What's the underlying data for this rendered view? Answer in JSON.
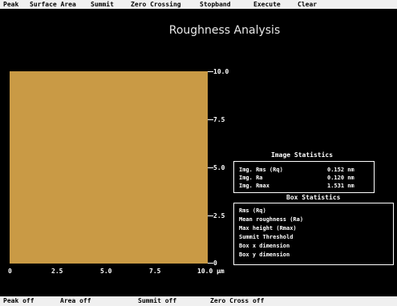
{
  "menu": {
    "peak": "Peak",
    "surface_area": "Surface Area",
    "summit": "Summit",
    "zero_crossing": "Zero Crossing",
    "stopband": "Stopband",
    "execute": "Execute",
    "clear": "Clear"
  },
  "title": "Roughness Analysis",
  "y_axis": {
    "ticks": [
      "10.0",
      "7.5",
      "5.0",
      "2.5",
      "0"
    ]
  },
  "x_axis": {
    "ticks": [
      "0",
      "2.5",
      "5.0",
      "7.5",
      "10.0"
    ],
    "unit": "µm"
  },
  "image_color": "#c99a45",
  "image_stats": {
    "title": "Image Statistics",
    "rows": [
      {
        "label": "Img. Rms (Rq)",
        "value": "0.152 nm"
      },
      {
        "label": "Img. Ra",
        "value": "0.120 nm"
      },
      {
        "label": "Img. Rmax",
        "value": "1.531 nm"
      }
    ]
  },
  "box_stats": {
    "title": "Box Statistics",
    "rows": [
      "Rms (Rq)",
      "Mean roughness (Ra)",
      "Max height (Rmax)",
      "Summit Threshold",
      "Box x dimension",
      "Box y dimension"
    ]
  },
  "status": {
    "peak": "Peak off",
    "area": "Area off",
    "summit": "Summit off",
    "zero_cross": "Zero Cross off"
  }
}
